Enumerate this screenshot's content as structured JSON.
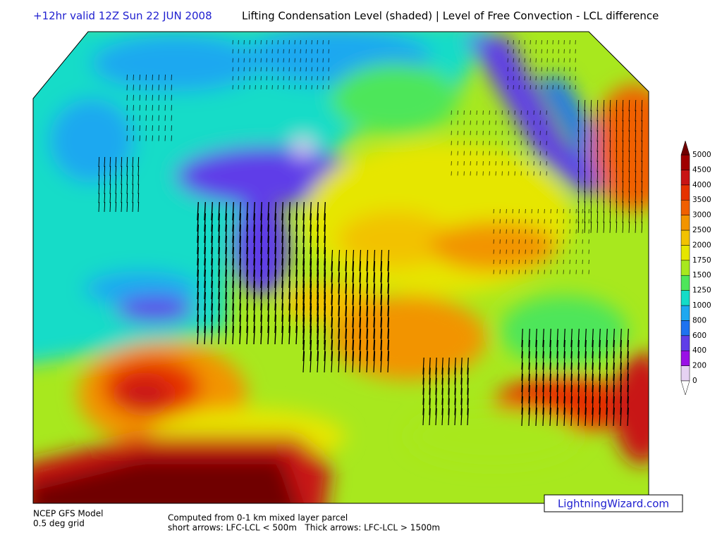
{
  "header": {
    "valid": "+12hr valid 12Z Sun 22 JUN 2008",
    "title": "Lifting Condensation Level (shaded) | Level of Free Convection - LCL difference"
  },
  "legend": {
    "levels": [
      {
        "value": 0,
        "color": "#e6d2f2"
      },
      {
        "value": 200,
        "color": "#9a10e6"
      },
      {
        "value": 400,
        "color": "#5f3ee8"
      },
      {
        "value": 600,
        "color": "#1e72f0"
      },
      {
        "value": 800,
        "color": "#1ea8f0"
      },
      {
        "value": 1000,
        "color": "#14dcc8"
      },
      {
        "value": 1250,
        "color": "#4ee65a"
      },
      {
        "value": 1500,
        "color": "#a8e81e"
      },
      {
        "value": 1750,
        "color": "#e6e600"
      },
      {
        "value": 2000,
        "color": "#f2c200"
      },
      {
        "value": 2500,
        "color": "#f29400"
      },
      {
        "value": 3000,
        "color": "#f06000"
      },
      {
        "value": 3500,
        "color": "#e63200"
      },
      {
        "value": 4000,
        "color": "#c81414"
      },
      {
        "value": 4500,
        "color": "#a00000"
      },
      {
        "value": 5000,
        "color": "#700000"
      }
    ]
  },
  "footer": {
    "model": "NCEP GFS Model",
    "grid": "0.5 deg grid",
    "computed": "Computed from 0-1 km mixed layer parcel",
    "arrows": "short arrows: LFC-LCL < 500m   Thick arrows: LFC-LCL > 1500m",
    "site": "LightningWizard.com"
  }
}
